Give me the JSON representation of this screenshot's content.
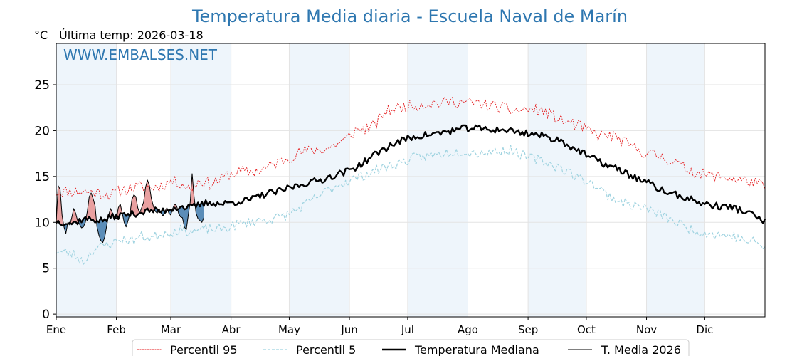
{
  "chart_data": {
    "type": "line",
    "title": "Temperatura Media diaria - Escuela Naval de Marín",
    "unit": "°C",
    "subtitle": "Última temp: 2026-03-18",
    "watermark": "WWW.EMBALSES.NET",
    "ylim": [
      -0.3,
      29.5
    ],
    "yticks": [
      0,
      5,
      10,
      15,
      20,
      25
    ],
    "xlim": [
      1,
      366
    ],
    "months": [
      {
        "label": "Ene",
        "day": 1
      },
      {
        "label": "Feb",
        "day": 32
      },
      {
        "label": "Mar",
        "day": 60
      },
      {
        "label": "Abr",
        "day": 91
      },
      {
        "label": "May",
        "day": 121
      },
      {
        "label": "Jun",
        "day": 152
      },
      {
        "label": "Jul",
        "day": 182
      },
      {
        "label": "Ago",
        "day": 213
      },
      {
        "label": "Sep",
        "day": 244
      },
      {
        "label": "Oct",
        "day": 274
      },
      {
        "label": "Nov",
        "day": 305
      },
      {
        "label": "Dic",
        "day": 335
      }
    ],
    "shaded_month_bands": true,
    "grid": true,
    "legend_position": "bottom-center",
    "colors": {
      "p95": "#e41a1c",
      "p5": "#9fd3e0",
      "median": "#000000",
      "current": "#000000",
      "above_fill": "#e8a0a0",
      "below_fill": "#5b8db8",
      "band": "#eef5fb",
      "title": "#2e77b0"
    },
    "series": [
      {
        "name": "Percentil 95",
        "key": "p95",
        "points": [
          [
            1,
            13.3
          ],
          [
            10,
            13.4
          ],
          [
            20,
            13.3
          ],
          [
            30,
            13.0
          ],
          [
            35,
            13.6
          ],
          [
            40,
            13.7
          ],
          [
            45,
            13.9
          ],
          [
            50,
            13.8
          ],
          [
            55,
            14.0
          ],
          [
            60,
            14.5
          ],
          [
            65,
            14.3
          ],
          [
            70,
            13.6
          ],
          [
            75,
            14.6
          ],
          [
            80,
            14.2
          ],
          [
            85,
            14.6
          ],
          [
            90,
            15.2
          ],
          [
            95,
            15.5
          ],
          [
            100,
            15.5
          ],
          [
            105,
            15.6
          ],
          [
            110,
            16.0
          ],
          [
            115,
            16.5
          ],
          [
            120,
            17.0
          ],
          [
            125,
            17.5
          ],
          [
            130,
            17.8
          ],
          [
            135,
            17.9
          ],
          [
            140,
            18.0
          ],
          [
            145,
            18.5
          ],
          [
            150,
            19.0
          ],
          [
            155,
            20.0
          ],
          [
            160,
            20.2
          ],
          [
            165,
            20.5
          ],
          [
            170,
            22.0
          ],
          [
            175,
            22.4
          ],
          [
            180,
            22.6
          ],
          [
            185,
            22.7
          ],
          [
            190,
            22.9
          ],
          [
            195,
            23.0
          ],
          [
            200,
            23.0
          ],
          [
            205,
            23.2
          ],
          [
            210,
            23.1
          ],
          [
            215,
            23.0
          ],
          [
            220,
            22.9
          ],
          [
            225,
            22.7
          ],
          [
            230,
            22.5
          ],
          [
            235,
            22.2
          ],
          [
            240,
            22.2
          ],
          [
            245,
            22.3
          ],
          [
            250,
            22.2
          ],
          [
            255,
            21.8
          ],
          [
            260,
            21.2
          ],
          [
            265,
            20.9
          ],
          [
            270,
            20.5
          ],
          [
            275,
            20.0
          ],
          [
            280,
            19.5
          ],
          [
            285,
            19.5
          ],
          [
            290,
            19.2
          ],
          [
            295,
            18.5
          ],
          [
            300,
            18.0
          ],
          [
            305,
            17.5
          ],
          [
            310,
            17.3
          ],
          [
            315,
            17.0
          ],
          [
            320,
            16.5
          ],
          [
            325,
            15.9
          ],
          [
            330,
            15.5
          ],
          [
            335,
            15.2
          ],
          [
            340,
            15.0
          ],
          [
            345,
            15.0
          ],
          [
            350,
            14.7
          ],
          [
            355,
            14.6
          ],
          [
            360,
            14.3
          ],
          [
            366,
            13.9
          ]
        ],
        "noise": 0.65,
        "seed": 11
      },
      {
        "name": "Percentil 5",
        "key": "p5",
        "points": [
          [
            1,
            6.9
          ],
          [
            10,
            6.5
          ],
          [
            15,
            5.7
          ],
          [
            20,
            7.0
          ],
          [
            30,
            7.8
          ],
          [
            35,
            8.2
          ],
          [
            40,
            8.0
          ],
          [
            45,
            8.5
          ],
          [
            50,
            8.3
          ],
          [
            55,
            8.8
          ],
          [
            60,
            8.9
          ],
          [
            65,
            9.2
          ],
          [
            70,
            9.0
          ],
          [
            75,
            9.1
          ],
          [
            80,
            9.3
          ],
          [
            85,
            9.2
          ],
          [
            90,
            9.5
          ],
          [
            95,
            9.8
          ],
          [
            100,
            10.0
          ],
          [
            105,
            10.2
          ],
          [
            110,
            10.3
          ],
          [
            115,
            10.5
          ],
          [
            120,
            10.8
          ],
          [
            125,
            11.4
          ],
          [
            130,
            12.0
          ],
          [
            135,
            12.7
          ],
          [
            140,
            13.4
          ],
          [
            145,
            14.0
          ],
          [
            150,
            14.4
          ],
          [
            155,
            14.8
          ],
          [
            160,
            15.2
          ],
          [
            165,
            15.6
          ],
          [
            170,
            16.0
          ],
          [
            175,
            16.3
          ],
          [
            180,
            16.6
          ],
          [
            185,
            17.0
          ],
          [
            190,
            17.2
          ],
          [
            195,
            17.3
          ],
          [
            200,
            17.5
          ],
          [
            205,
            17.7
          ],
          [
            210,
            17.8
          ],
          [
            215,
            17.6
          ],
          [
            220,
            17.6
          ],
          [
            225,
            17.7
          ],
          [
            230,
            17.8
          ],
          [
            235,
            17.9
          ],
          [
            240,
            17.4
          ],
          [
            245,
            17.0
          ],
          [
            250,
            16.8
          ],
          [
            255,
            16.4
          ],
          [
            260,
            16.0
          ],
          [
            265,
            15.5
          ],
          [
            270,
            14.8
          ],
          [
            275,
            14.5
          ],
          [
            280,
            13.8
          ],
          [
            285,
            13.0
          ],
          [
            290,
            12.4
          ],
          [
            295,
            12.0
          ],
          [
            300,
            11.8
          ],
          [
            305,
            11.5
          ],
          [
            310,
            11.0
          ],
          [
            315,
            10.6
          ],
          [
            320,
            10.0
          ],
          [
            325,
            9.5
          ],
          [
            330,
            9.1
          ],
          [
            335,
            8.9
          ],
          [
            340,
            8.7
          ],
          [
            345,
            8.6
          ],
          [
            350,
            8.5
          ],
          [
            355,
            8.0
          ],
          [
            360,
            7.9
          ],
          [
            366,
            7.3
          ]
        ],
        "noise": 0.55,
        "seed": 23
      },
      {
        "name": "Temperatura Mediana",
        "key": "median",
        "points": [
          [
            1,
            10.1
          ],
          [
            5,
            10.0
          ],
          [
            10,
            9.9
          ],
          [
            15,
            10.4
          ],
          [
            20,
            10.3
          ],
          [
            25,
            10.2
          ],
          [
            30,
            10.6
          ],
          [
            35,
            10.8
          ],
          [
            40,
            10.9
          ],
          [
            45,
            11.1
          ],
          [
            50,
            11.3
          ],
          [
            55,
            11.2
          ],
          [
            60,
            11.5
          ],
          [
            65,
            11.7
          ],
          [
            70,
            11.6
          ],
          [
            75,
            11.9
          ],
          [
            80,
            12.2
          ],
          [
            85,
            12.0
          ],
          [
            90,
            12.1
          ],
          [
            95,
            12.3
          ],
          [
            100,
            12.4
          ],
          [
            105,
            12.8
          ],
          [
            110,
            13.2
          ],
          [
            115,
            13.3
          ],
          [
            120,
            13.7
          ],
          [
            125,
            14.0
          ],
          [
            130,
            14.3
          ],
          [
            135,
            14.5
          ],
          [
            140,
            14.8
          ],
          [
            145,
            15.2
          ],
          [
            150,
            15.5
          ],
          [
            155,
            16.0
          ],
          [
            160,
            16.6
          ],
          [
            165,
            17.4
          ],
          [
            170,
            18.0
          ],
          [
            175,
            18.6
          ],
          [
            180,
            19.0
          ],
          [
            185,
            19.3
          ],
          [
            190,
            19.5
          ],
          [
            195,
            19.6
          ],
          [
            200,
            19.8
          ],
          [
            205,
            20.0
          ],
          [
            210,
            20.2
          ],
          [
            215,
            20.3
          ],
          [
            220,
            20.2
          ],
          [
            225,
            20.1
          ],
          [
            230,
            20.1
          ],
          [
            235,
            20.0
          ],
          [
            240,
            19.8
          ],
          [
            245,
            19.7
          ],
          [
            250,
            19.5
          ],
          [
            255,
            19.2
          ],
          [
            260,
            19.0
          ],
          [
            265,
            18.4
          ],
          [
            270,
            17.8
          ],
          [
            275,
            17.2
          ],
          [
            280,
            16.7
          ],
          [
            285,
            16.2
          ],
          [
            290,
            15.8
          ],
          [
            295,
            15.3
          ],
          [
            300,
            14.8
          ],
          [
            305,
            14.4
          ],
          [
            310,
            13.8
          ],
          [
            315,
            13.3
          ],
          [
            320,
            13.0
          ],
          [
            325,
            12.7
          ],
          [
            330,
            12.3
          ],
          [
            335,
            12.0
          ],
          [
            340,
            11.8
          ],
          [
            345,
            11.7
          ],
          [
            350,
            11.6
          ],
          [
            355,
            11.2
          ],
          [
            360,
            10.8
          ],
          [
            366,
            10.0
          ]
        ],
        "noise": 0.38,
        "seed": 37
      },
      {
        "name": "T. Media 2026",
        "key": "current",
        "points": [
          [
            1,
            10.0
          ],
          [
            2,
            14.0
          ],
          [
            3,
            13.6
          ],
          [
            4,
            10.8
          ],
          [
            5,
            9.5
          ],
          [
            6,
            8.8
          ],
          [
            7,
            10.0
          ],
          [
            8,
            9.7
          ],
          [
            9,
            10.5
          ],
          [
            10,
            11.5
          ],
          [
            11,
            11.0
          ],
          [
            12,
            10.2
          ],
          [
            13,
            9.8
          ],
          [
            14,
            9.4
          ],
          [
            15,
            9.5
          ],
          [
            16,
            10.0
          ],
          [
            17,
            11.2
          ],
          [
            18,
            12.8
          ],
          [
            19,
            13.2
          ],
          [
            20,
            12.6
          ],
          [
            21,
            11.8
          ],
          [
            22,
            9.5
          ],
          [
            23,
            8.6
          ],
          [
            24,
            8.0
          ],
          [
            25,
            7.8
          ],
          [
            26,
            8.4
          ],
          [
            27,
            9.6
          ],
          [
            28,
            10.8
          ],
          [
            29,
            11.5
          ],
          [
            30,
            11.0
          ],
          [
            31,
            10.5
          ],
          [
            32,
            10.4
          ],
          [
            33,
            11.6
          ],
          [
            34,
            12.0
          ],
          [
            35,
            11.0
          ],
          [
            36,
            10.0
          ],
          [
            37,
            9.5
          ],
          [
            38,
            10.2
          ],
          [
            39,
            11.0
          ],
          [
            40,
            12.5
          ],
          [
            41,
            13.0
          ],
          [
            42,
            12.8
          ],
          [
            43,
            11.6
          ],
          [
            44,
            11.0
          ],
          [
            45,
            11.6
          ],
          [
            46,
            12.2
          ],
          [
            47,
            13.8
          ],
          [
            48,
            14.6
          ],
          [
            49,
            14.0
          ],
          [
            50,
            12.6
          ],
          [
            51,
            11.8
          ],
          [
            52,
            11.2
          ],
          [
            53,
            11.0
          ],
          [
            54,
            11.5
          ],
          [
            55,
            11.0
          ],
          [
            56,
            10.7
          ],
          [
            57,
            11.2
          ],
          [
            58,
            11.6
          ],
          [
            59,
            11.0
          ],
          [
            60,
            10.8
          ],
          [
            61,
            11.5
          ],
          [
            62,
            12.0
          ],
          [
            63,
            11.8
          ],
          [
            64,
            11.0
          ],
          [
            65,
            10.6
          ],
          [
            66,
            10.5
          ],
          [
            67,
            9.5
          ],
          [
            68,
            9.2
          ],
          [
            69,
            10.8
          ],
          [
            70,
            12.2
          ],
          [
            71,
            15.3
          ],
          [
            72,
            12.8
          ],
          [
            73,
            11.0
          ],
          [
            74,
            10.4
          ],
          [
            75,
            10.2
          ],
          [
            76,
            10.0
          ],
          [
            77,
            10.5
          ]
        ],
        "noise": 0,
        "seed": 0
      }
    ]
  }
}
